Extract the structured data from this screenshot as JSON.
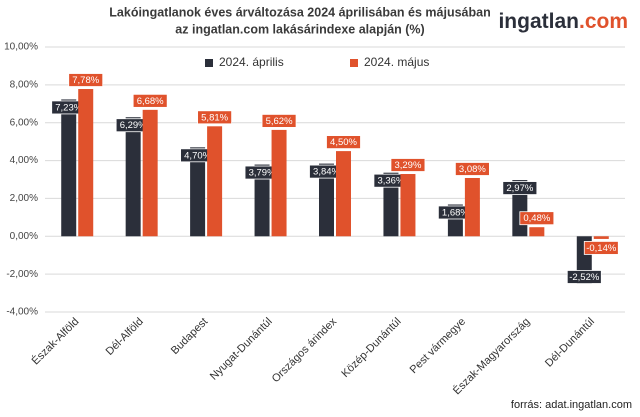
{
  "chart_data": {
    "type": "bar",
    "title": [
      "Lakóingatlanok éves árváltozása 2024 áprilisában és májusában",
      "az ingatlan.com lakásárindexe alapján (%)"
    ],
    "brand": {
      "name": "ingatlan",
      "suffix": ".com"
    },
    "source": "forrás: adat.ingatlan.com",
    "categories": [
      "Észak-Alföld",
      "Dél-Alföld",
      "Budapest",
      "Nyugat-Dunántúl",
      "Országos árindex",
      "Közép-Dunántúl",
      "Pest vármegye",
      "Észak-Magyarország",
      "Dél-Dunántúl"
    ],
    "series": [
      {
        "name": "2024. április",
        "color": "#2b2f3a",
        "values": [
          7.23,
          6.29,
          4.7,
          3.79,
          3.84,
          3.36,
          1.68,
          2.97,
          -2.52
        ],
        "value_labels": [
          "7,23%",
          "6,29%",
          "4,70%",
          "3,79%",
          "3,84%",
          "3,36%",
          "1,68%",
          "2,97%",
          "-2,52%"
        ]
      },
      {
        "name": "2024. május",
        "color": "#e0522c",
        "values": [
          7.78,
          6.68,
          5.81,
          5.62,
          4.5,
          3.29,
          3.08,
          0.48,
          -0.14
        ],
        "value_labels": [
          "7,78%",
          "6,68%",
          "5,81%",
          "5,62%",
          "4,50%",
          "3,29%",
          "3,08%",
          "0,48%",
          "-0,14%"
        ]
      }
    ],
    "ylim": [
      -4,
      10
    ],
    "yticks": [
      {
        "value": -4,
        "label": "-4,00%"
      },
      {
        "value": -2,
        "label": "-2,00%"
      },
      {
        "value": 0,
        "label": "0,00%"
      },
      {
        "value": 2,
        "label": "2,00%"
      },
      {
        "value": 4,
        "label": "4,00%"
      },
      {
        "value": 6,
        "label": "6,00%"
      },
      {
        "value": 8,
        "label": "8,00%"
      },
      {
        "value": 10,
        "label": "10,00%"
      }
    ],
    "grid": true
  }
}
